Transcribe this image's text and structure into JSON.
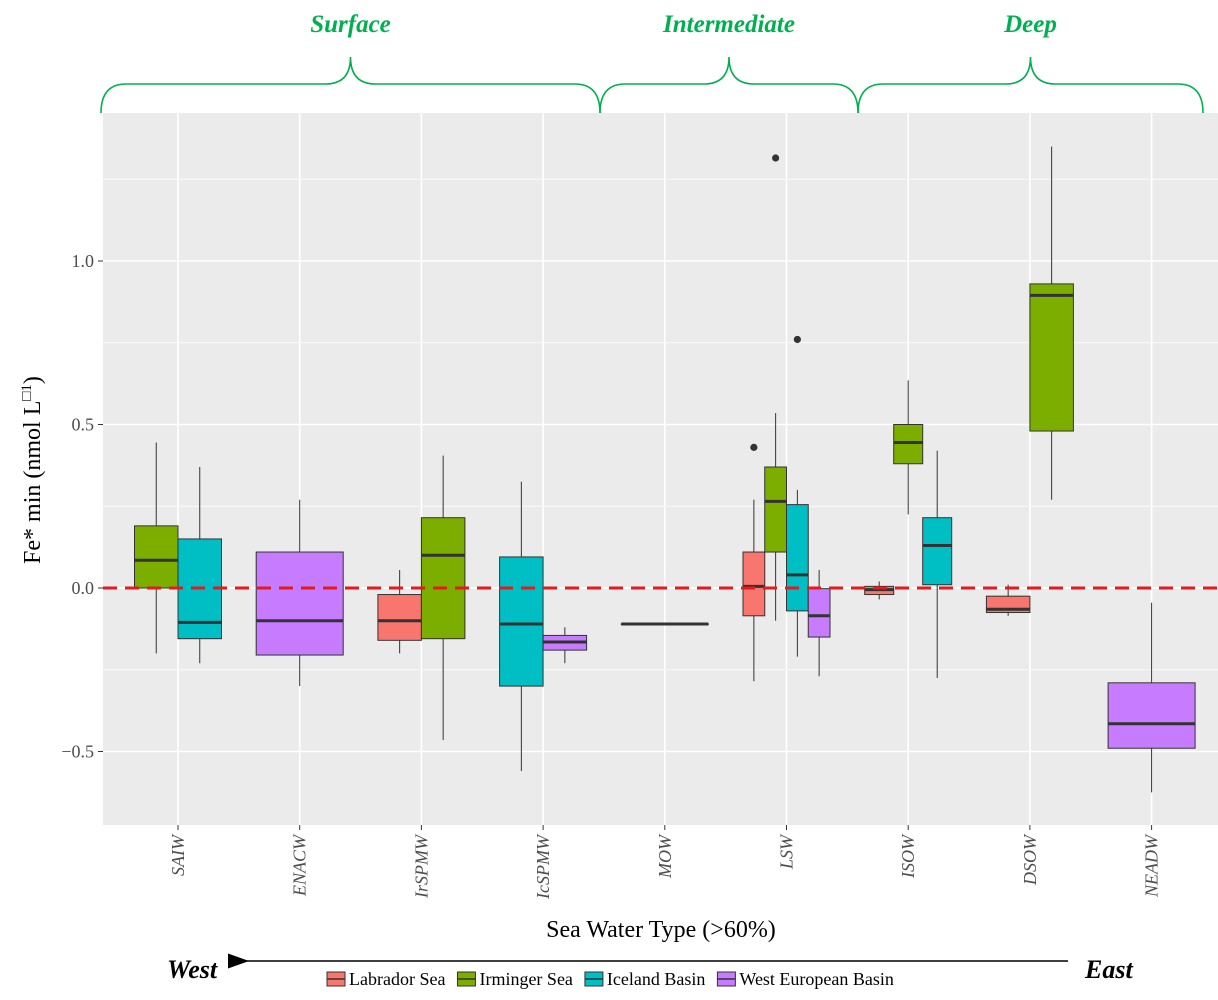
{
  "chart_data": {
    "type": "box",
    "xlabel": "Sea Water Type (>60%)",
    "ylabel": "Fe* min (nmol L□1)",
    "ylabel_main": "Fe* min (nmol L",
    "ylabel_sup": "□1",
    "ylabel_close": ")",
    "ylim": [
      -0.72,
      1.45
    ],
    "yticks": [
      -0.5,
      0.0,
      0.5,
      1.0
    ],
    "ytick_labels": [
      "−0.5",
      "0.0",
      "0.5",
      "1.0"
    ],
    "categories": [
      "SAIW",
      "ENACW",
      "IrSPMW",
      "IcSPMW",
      "MOW",
      "LSW",
      "ISOW",
      "DSOW",
      "NEADW"
    ],
    "reference_line": {
      "y": 0.0,
      "color": "#e41a1c",
      "style": "dashed"
    },
    "groups": [
      {
        "label": "Surface",
        "from": "SAIW",
        "to": "IcSPMW"
      },
      {
        "label": "Intermediate",
        "from": "MOW",
        "to": "LSW"
      },
      {
        "label": "Deep",
        "from": "ISOW",
        "to": "NEADW"
      }
    ],
    "direction": {
      "left": "West",
      "right": "East"
    },
    "legend": {
      "position": "bottom",
      "entries": [
        {
          "name": "Labrador Sea",
          "color": "#F8766D"
        },
        {
          "name": "Irminger Sea",
          "color": "#7CAE00"
        },
        {
          "name": "Iceland Basin",
          "color": "#00BFC4"
        },
        {
          "name": "West European Basin",
          "color": "#C77CFF"
        }
      ]
    },
    "grid": true,
    "panel_background": "#ebebeb",
    "boxes": [
      {
        "category": "SAIW",
        "series": "Irminger Sea",
        "slot": -0.5,
        "slots": 2,
        "whisker_low": -0.2,
        "q1": 0.0,
        "median": 0.085,
        "q3": 0.19,
        "whisker_high": 0.445,
        "outliers": []
      },
      {
        "category": "SAIW",
        "series": "Iceland Basin",
        "slot": 0.5,
        "slots": 2,
        "whisker_low": -0.23,
        "q1": -0.155,
        "median": -0.105,
        "q3": 0.15,
        "whisker_high": 0.37,
        "outliers": []
      },
      {
        "category": "ENACW",
        "series": "West European Basin",
        "slot": 0,
        "slots": 1,
        "whisker_low": -0.3,
        "q1": -0.205,
        "median": -0.1,
        "q3": 0.11,
        "whisker_high": 0.27,
        "outliers": []
      },
      {
        "category": "IrSPMW",
        "series": "Labrador Sea",
        "slot": -0.5,
        "slots": 2,
        "whisker_low": -0.2,
        "q1": -0.16,
        "median": -0.1,
        "q3": -0.02,
        "whisker_high": 0.055,
        "outliers": []
      },
      {
        "category": "IrSPMW",
        "series": "Irminger Sea",
        "slot": 0.5,
        "slots": 2,
        "whisker_low": -0.465,
        "q1": -0.155,
        "median": 0.1,
        "q3": 0.215,
        "whisker_high": 0.405,
        "outliers": []
      },
      {
        "category": "IcSPMW",
        "series": "Iceland Basin",
        "slot": -0.5,
        "slots": 2,
        "whisker_low": -0.56,
        "q1": -0.3,
        "median": -0.11,
        "q3": 0.095,
        "whisker_high": 0.325,
        "outliers": []
      },
      {
        "category": "IcSPMW",
        "series": "West European Basin",
        "slot": 0.5,
        "slots": 2,
        "whisker_low": -0.23,
        "q1": -0.19,
        "median": -0.165,
        "q3": -0.145,
        "whisker_high": -0.12,
        "outliers": []
      },
      {
        "category": "MOW",
        "series": "Labrador Sea",
        "slot": 0,
        "slots": 1,
        "whisker_low": -0.11,
        "q1": -0.11,
        "median": -0.11,
        "q3": -0.11,
        "whisker_high": -0.11,
        "outliers": []
      },
      {
        "category": "LSW",
        "series": "Labrador Sea",
        "slot": -1.5,
        "slots": 4,
        "whisker_low": -0.285,
        "q1": -0.085,
        "median": 0.005,
        "q3": 0.11,
        "whisker_high": 0.27,
        "outliers": [
          0.43
        ]
      },
      {
        "category": "LSW",
        "series": "Irminger Sea",
        "slot": -0.5,
        "slots": 4,
        "whisker_low": -0.1,
        "q1": 0.11,
        "median": 0.265,
        "q3": 0.37,
        "whisker_high": 0.535,
        "outliers": [
          1.315
        ]
      },
      {
        "category": "LSW",
        "series": "Iceland Basin",
        "slot": 0.5,
        "slots": 4,
        "whisker_low": -0.21,
        "q1": -0.07,
        "median": 0.04,
        "q3": 0.255,
        "whisker_high": 0.3,
        "outliers": [
          0.76
        ]
      },
      {
        "category": "LSW",
        "series": "West European Basin",
        "slot": 1.5,
        "slots": 4,
        "whisker_low": -0.27,
        "q1": -0.15,
        "median": -0.085,
        "q3": -0.002,
        "whisker_high": 0.055,
        "outliers": []
      },
      {
        "category": "ISOW",
        "series": "Labrador Sea",
        "slot": -1,
        "slots": 3,
        "whisker_low": -0.035,
        "q1": -0.02,
        "median": -0.005,
        "q3": 0.005,
        "whisker_high": 0.02,
        "outliers": []
      },
      {
        "category": "ISOW",
        "series": "Irminger Sea",
        "slot": 0,
        "slots": 3,
        "whisker_low": 0.225,
        "q1": 0.38,
        "median": 0.445,
        "q3": 0.5,
        "whisker_high": 0.635,
        "outliers": []
      },
      {
        "category": "ISOW",
        "series": "Iceland Basin",
        "slot": 1,
        "slots": 3,
        "whisker_low": -0.275,
        "q1": 0.01,
        "median": 0.13,
        "q3": 0.215,
        "whisker_high": 0.42,
        "outliers": []
      },
      {
        "category": "DSOW",
        "series": "Labrador Sea",
        "slot": -0.5,
        "slots": 2,
        "whisker_low": -0.085,
        "q1": -0.075,
        "median": -0.065,
        "q3": -0.025,
        "whisker_high": 0.01,
        "outliers": []
      },
      {
        "category": "DSOW",
        "series": "Irminger Sea",
        "slot": 0.5,
        "slots": 2,
        "whisker_low": 0.27,
        "q1": 0.48,
        "median": 0.895,
        "q3": 0.93,
        "whisker_high": 1.35,
        "outliers": []
      },
      {
        "category": "NEADW",
        "series": "West European Basin",
        "slot": 0,
        "slots": 1,
        "whisker_low": -0.625,
        "q1": -0.49,
        "median": -0.415,
        "q3": -0.29,
        "whisker_high": -0.045,
        "outliers": []
      }
    ]
  }
}
